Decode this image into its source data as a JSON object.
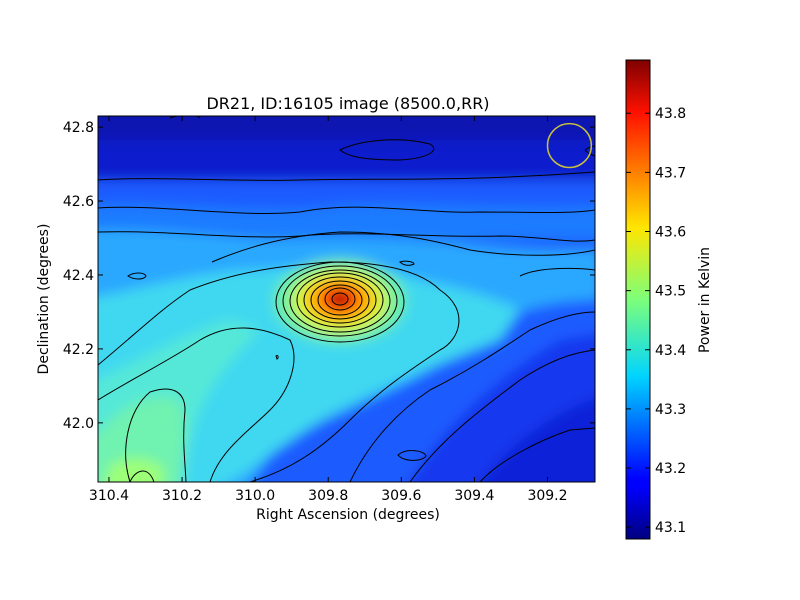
{
  "chart_data": {
    "type": "heatmap",
    "title": "DR21, ID:16105 image (8500.0,RR)",
    "xlabel": "Right Ascension (degrees)",
    "ylabel": "Declination (degrees)",
    "xlim": [
      310.43,
      309.07
    ],
    "ylim": [
      41.84,
      42.83
    ],
    "x_ticks": [
      310.4,
      310.2,
      310.0,
      309.8,
      309.6,
      309.4,
      309.2
    ],
    "x_tick_labels": [
      "310.4",
      "310.2",
      "310.0",
      "309.8",
      "309.6",
      "309.4",
      "309.2"
    ],
    "y_ticks": [
      42.0,
      42.2,
      42.4,
      42.6,
      42.8
    ],
    "y_tick_labels": [
      "42.0",
      "42.2",
      "42.4",
      "42.6",
      "42.8"
    ],
    "colorbar": {
      "label": "Power in Kelvin",
      "range": [
        43.08,
        43.89
      ],
      "ticks": [
        43.1,
        43.2,
        43.3,
        43.4,
        43.5,
        43.6,
        43.7,
        43.8
      ],
      "tick_labels": [
        "43.1",
        "43.2",
        "43.3",
        "43.4",
        "43.5",
        "43.6",
        "43.7",
        "43.8"
      ],
      "colormap": "jet"
    },
    "peak": {
      "ra": 309.77,
      "dec": 42.33,
      "value": 43.89
    },
    "beam_marker": {
      "ra": 309.14,
      "dec": 42.75,
      "radius_deg": 0.06,
      "color": "#c8c03c"
    }
  }
}
